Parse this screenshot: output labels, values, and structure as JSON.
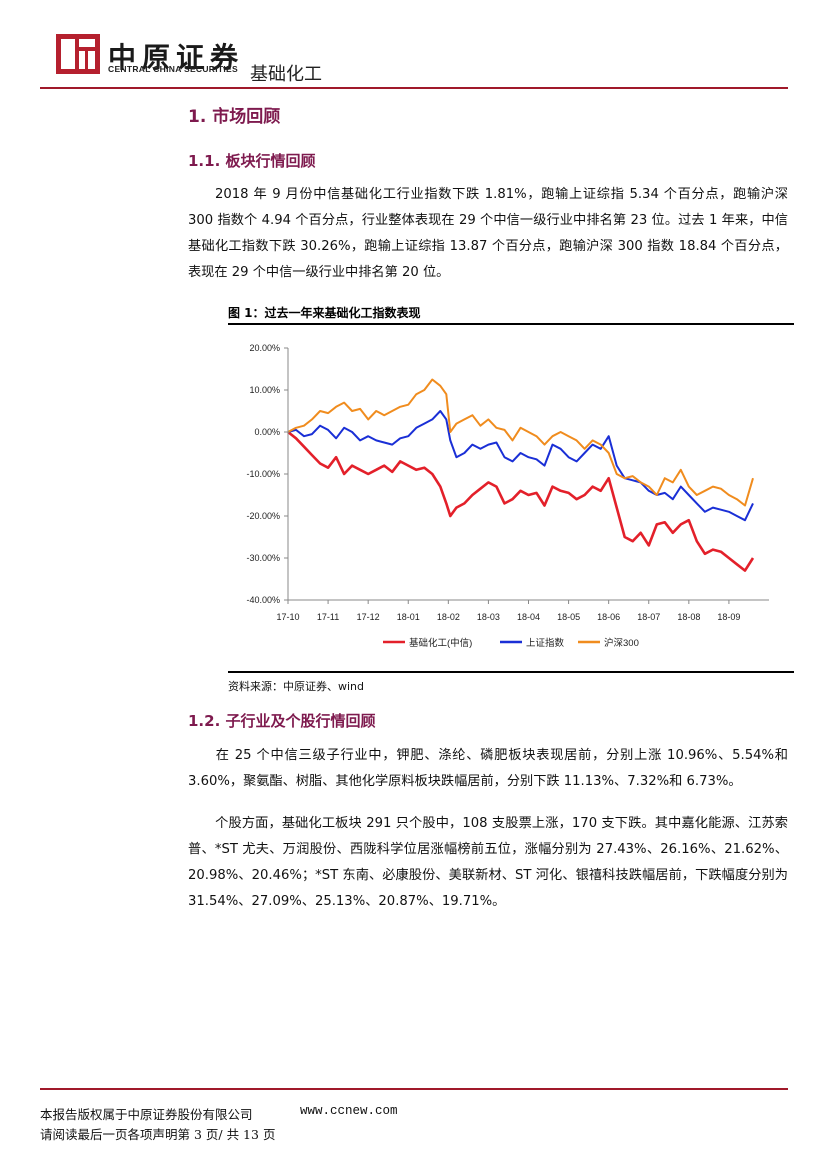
{
  "header": {
    "logo_cn": "中原证券",
    "logo_en": "CENTRAL CHINA SECURITIES",
    "sector": "基础化工",
    "accent_color": "#a0192a"
  },
  "section1": {
    "title": "1. 市场回顾"
  },
  "section1_1": {
    "title": "1.1. 板块行情回顾",
    "paragraph": "2018 年 9 月份中信基础化工行业指数下跌 1.81%，跑输上证综指 5.34 个百分点，跑输沪深 300 指数个 4.94 个百分点，行业整体表现在 29 个中信一级行业中排名第 23 位。过去 1 年来，中信基础化工指数下跌 30.26%，跑输上证综指 13.87 个百分点，跑输沪深 300 指数 18.84 个百分点，表现在 29 个中信一级行业中排名第 20 位。"
  },
  "figure1": {
    "title": "图 1：过去一年来基础化工指数表现",
    "source": "资料来源：中原证券、wind"
  },
  "chart_data": {
    "type": "line",
    "title": "过去一年来基础化工指数表现",
    "xlabel": "",
    "ylabel": "",
    "ylim": [
      -40,
      20
    ],
    "yticks": [
      "20.00%",
      "10.00%",
      "0.00%",
      "-10.00%",
      "-20.00%",
      "-30.00%",
      "-40.00%"
    ],
    "ytick_values": [
      20,
      10,
      0,
      -10,
      -20,
      -30,
      -40
    ],
    "categories": [
      "17-10",
      "17-11",
      "17-12",
      "18-01",
      "18-02",
      "18-03",
      "18-04",
      "18-05",
      "18-06",
      "18-07",
      "18-08",
      "18-09"
    ],
    "x_end": 12,
    "grid": false,
    "legend_position": "bottom",
    "series": [
      {
        "name": "基础化工(中信)",
        "color": "#e3202a",
        "x": [
          0,
          0.2,
          0.4,
          0.6,
          0.8,
          1.0,
          1.2,
          1.4,
          1.6,
          1.8,
          2.0,
          2.2,
          2.4,
          2.6,
          2.8,
          3.0,
          3.2,
          3.4,
          3.6,
          3.8,
          3.95,
          4.05,
          4.2,
          4.4,
          4.6,
          4.8,
          5.0,
          5.2,
          5.4,
          5.6,
          5.8,
          6.0,
          6.2,
          6.4,
          6.6,
          6.8,
          7.0,
          7.2,
          7.4,
          7.6,
          7.8,
          8.0,
          8.2,
          8.4,
          8.6,
          8.8,
          9.0,
          9.2,
          9.4,
          9.6,
          9.8,
          10.0,
          10.2,
          10.4,
          10.6,
          10.8,
          11.0,
          11.2,
          11.4,
          11.6
        ],
        "y": [
          0,
          -1.5,
          -3.5,
          -5.5,
          -7.5,
          -8.5,
          -6,
          -10,
          -8,
          -9,
          -10,
          -9,
          -8,
          -9.5,
          -7,
          -8,
          -9,
          -8.5,
          -10,
          -13,
          -17,
          -20,
          -18,
          -17,
          -15,
          -13.5,
          -12,
          -13,
          -17,
          -16,
          -14,
          -15,
          -14.5,
          -17.5,
          -13,
          -14,
          -14.5,
          -16,
          -15,
          -13,
          -14,
          -11,
          -18,
          -25,
          -26,
          -24,
          -27,
          -22,
          -21.5,
          -24,
          -22,
          -21,
          -26,
          -29,
          -28,
          -28.5,
          -30,
          -31.5,
          -33,
          -30
        ]
      },
      {
        "name": "上证指数",
        "color": "#1a2fd6",
        "x": [
          0,
          0.2,
          0.4,
          0.6,
          0.8,
          1.0,
          1.2,
          1.4,
          1.6,
          1.8,
          2.0,
          2.2,
          2.4,
          2.6,
          2.8,
          3.0,
          3.2,
          3.4,
          3.6,
          3.8,
          3.95,
          4.05,
          4.2,
          4.4,
          4.6,
          4.8,
          5.0,
          5.2,
          5.4,
          5.6,
          5.8,
          6.0,
          6.2,
          6.4,
          6.6,
          6.8,
          7.0,
          7.2,
          7.4,
          7.6,
          7.8,
          8.0,
          8.2,
          8.4,
          8.6,
          8.8,
          9.0,
          9.2,
          9.4,
          9.6,
          9.8,
          10.0,
          10.2,
          10.4,
          10.6,
          10.8,
          11.0,
          11.2,
          11.4,
          11.6
        ],
        "y": [
          0,
          0.5,
          -1,
          -0.5,
          1.5,
          0.5,
          -1.5,
          1,
          0,
          -2,
          -1,
          -2,
          -2.5,
          -3,
          -1.5,
          -1,
          1,
          2,
          3,
          5,
          3,
          -2,
          -6,
          -5,
          -3,
          -4,
          -3,
          -2.5,
          -6,
          -7,
          -5,
          -6,
          -6.5,
          -8,
          -3,
          -4,
          -6,
          -7,
          -5,
          -3,
          -4,
          -1,
          -8,
          -11,
          -11.5,
          -12,
          -14,
          -15,
          -14.5,
          -16,
          -13,
          -15,
          -17,
          -19,
          -18,
          -18.5,
          -19,
          -20,
          -21,
          -17
        ]
      },
      {
        "name": "沪深300",
        "color": "#f08c1e",
        "x": [
          0,
          0.2,
          0.4,
          0.6,
          0.8,
          1.0,
          1.2,
          1.4,
          1.6,
          1.8,
          2.0,
          2.2,
          2.4,
          2.6,
          2.8,
          3.0,
          3.2,
          3.4,
          3.6,
          3.8,
          3.95,
          4.05,
          4.2,
          4.4,
          4.6,
          4.8,
          5.0,
          5.2,
          5.4,
          5.6,
          5.8,
          6.0,
          6.2,
          6.4,
          6.6,
          6.8,
          7.0,
          7.2,
          7.4,
          7.6,
          7.8,
          8.0,
          8.2,
          8.4,
          8.6,
          8.8,
          9.0,
          9.2,
          9.4,
          9.6,
          9.8,
          10.0,
          10.2,
          10.4,
          10.6,
          10.8,
          11.0,
          11.2,
          11.4,
          11.6
        ],
        "y": [
          0,
          1,
          1.5,
          3,
          5,
          4.5,
          6,
          7,
          5,
          5.5,
          3,
          5,
          4,
          5,
          6,
          6.5,
          9,
          10,
          12.5,
          11,
          9,
          0,
          2,
          3,
          4,
          1.5,
          3,
          1,
          0.5,
          -2,
          1,
          0,
          -1,
          -3,
          -1,
          0,
          -1,
          -2,
          -4,
          -2,
          -3,
          -5,
          -10,
          -11,
          -10.5,
          -12,
          -13,
          -15,
          -11,
          -12,
          -9,
          -13,
          -15,
          -14,
          -13,
          -13.5,
          -15,
          -16,
          -17.5,
          -11
        ]
      }
    ]
  },
  "section1_2": {
    "title": "1.2. 子行业及个股行情回顾",
    "paragraph1": "在 25 个中信三级子行业中，钾肥、涤纶、磷肥板块表现居前，分别上涨 10.96%、5.54%和 3.60%，聚氨酯、树脂、其他化学原料板块跌幅居前，分别下跌 11.13%、7.32%和 6.73%。",
    "paragraph2": "个股方面，基础化工板块 291 只个股中，108 支股票上涨，170 支下跌。其中嘉化能源、江苏索普、*ST 尤夫、万润股份、西陇科学位居涨幅榜前五位，涨幅分别为 27.43%、26.16%、21.62%、20.98%、20.46%；*ST 东南、必康股份、美联新材、ST 河化、银禧科技跌幅居前，下跌幅度分别为 31.54%、27.09%、25.13%、20.87%、19.71%。"
  },
  "footer": {
    "copyright": "本报告版权属于中原证券股份有限公司",
    "website": "www.ccnew.com",
    "page_note": "请阅读最后一页各项声明第 3 页/ 共 13 页"
  }
}
